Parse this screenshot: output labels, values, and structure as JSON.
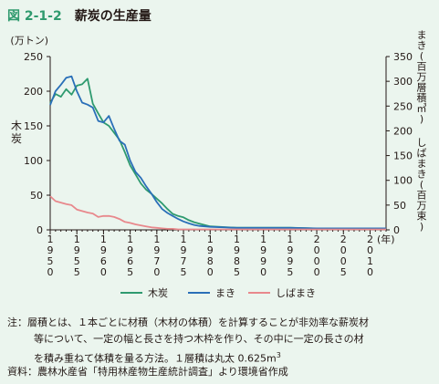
{
  "figure": {
    "number": "図 2-1-2",
    "title": "薪炭の生産量"
  },
  "chart_data": {
    "type": "line",
    "left_axis": {
      "unit": "(万トン)",
      "label": "木炭",
      "ticks": [
        0,
        50,
        100,
        150,
        200,
        250
      ],
      "range": [
        0,
        250
      ]
    },
    "right_axis": {
      "label_top": "まき(百万層積㎥)",
      "label_bottom": "しばまき(百万束)",
      "ticks": [
        0,
        50,
        100,
        150,
        200,
        250,
        300,
        350
      ],
      "range": [
        0,
        350
      ]
    },
    "x_axis": {
      "unit": "(年)",
      "range": [
        1950,
        2013
      ],
      "ticks": [
        1950,
        1955,
        1960,
        1965,
        1970,
        1975,
        1980,
        1985,
        1990,
        1995,
        2000,
        2005,
        2010
      ]
    },
    "grid": false,
    "legend_position": "bottom",
    "series": [
      {
        "name": "木炭",
        "axis": "left",
        "color": "#2e9a6f",
        "x": [
          1950,
          1951,
          1952,
          1953,
          1954,
          1955,
          1956,
          1957,
          1958,
          1959,
          1960,
          1961,
          1962,
          1963,
          1964,
          1965,
          1966,
          1967,
          1968,
          1969,
          1970,
          1971,
          1972,
          1973,
          1974,
          1975,
          1976,
          1977,
          1978,
          1979,
          1980,
          1985,
          1990,
          1995,
          2000,
          2005,
          2010,
          2013
        ],
        "y": [
          183,
          196,
          192,
          203,
          195,
          208,
          210,
          218,
          182,
          168,
          155,
          150,
          140,
          130,
          112,
          93,
          80,
          67,
          58,
          52,
          45,
          38,
          30,
          23,
          20,
          18,
          14,
          11,
          9,
          7,
          5,
          3,
          3,
          3,
          2,
          2,
          2,
          2
        ]
      },
      {
        "name": "まき",
        "axis": "right",
        "color": "#2a6fb8",
        "x": [
          1950,
          1951,
          1952,
          1953,
          1954,
          1955,
          1956,
          1957,
          1958,
          1959,
          1960,
          1961,
          1962,
          1963,
          1964,
          1965,
          1966,
          1967,
          1968,
          1969,
          1970,
          1971,
          1972,
          1973,
          1974,
          1975,
          1976,
          1977,
          1978,
          1979,
          1980,
          1985,
          1990,
          1995,
          2000,
          2005,
          2010,
          2013
        ],
        "y": [
          252,
          280,
          293,
          307,
          310,
          280,
          257,
          253,
          247,
          220,
          217,
          230,
          204,
          180,
          172,
          140,
          117,
          105,
          88,
          73,
          56,
          42,
          34,
          28,
          22,
          17,
          13,
          10,
          8,
          7,
          6,
          4,
          4,
          4,
          3,
          3,
          3,
          3
        ]
      },
      {
        "name": "しばまき",
        "axis": "right",
        "color": "#e8888c",
        "x": [
          1950,
          1951,
          1952,
          1953,
          1954,
          1955,
          1956,
          1957,
          1958,
          1959,
          1960,
          1961,
          1962,
          1963,
          1964,
          1965,
          1966,
          1967,
          1968,
          1969,
          1970,
          1971,
          1972,
          1973,
          1974,
          1975,
          1976,
          1977,
          1978,
          1979,
          1980,
          1985,
          1990,
          1995,
          2000,
          2005,
          2010,
          2013
        ],
        "y": [
          68,
          58,
          55,
          52,
          50,
          41,
          38,
          35,
          33,
          26,
          28,
          28,
          26,
          22,
          16,
          14,
          11,
          9,
          7,
          5,
          4,
          3,
          2,
          2,
          1,
          1,
          1,
          1,
          1,
          1,
          1,
          1,
          1,
          1,
          1,
          1,
          1,
          1
        ]
      }
    ]
  },
  "notes": {
    "line1": "注：層積とは、１本ごとに材積（木材の体積）を計算することが非効率な薪炭材",
    "line2": "等について、一定の幅と長さを持つ木枠を作り、その中に一定の長さの材",
    "line3": "を積み重ねて体積を量る方法。１層積は丸太 0.625m",
    "line3_sup": "3",
    "source": "資料：農林水産省「特用林産物生産統計調査」より環境省作成"
  }
}
